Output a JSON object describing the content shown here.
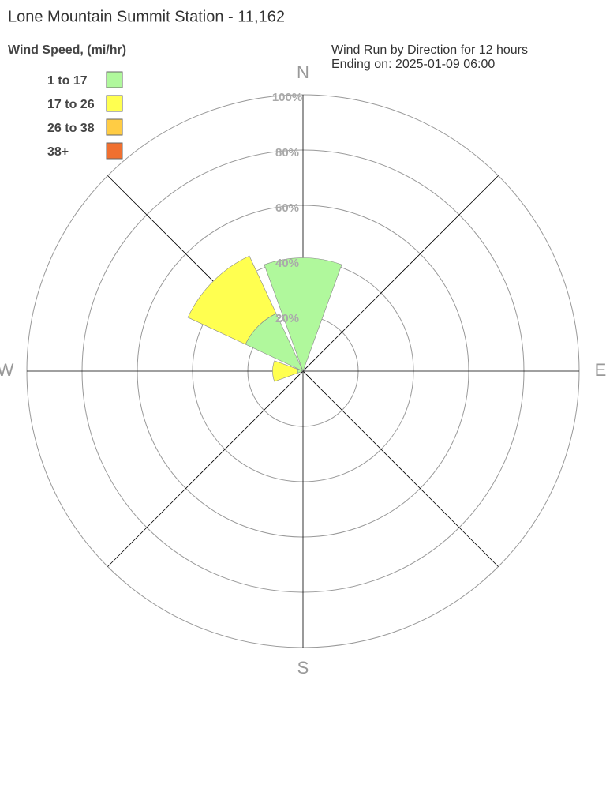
{
  "chart_data": {
    "type": "windrose",
    "title": "Lone Mountain Summit Station - 11,162",
    "subtitle": [
      "Wind Run by Direction for 12 hours",
      "Ending on: 2025-01-09 06:00"
    ],
    "legend_title": "Wind Speed, (mi/hr)",
    "categories": [
      "N",
      null,
      "E",
      null,
      "S",
      null,
      "W",
      null
    ],
    "series": [
      {
        "name": "1 to 17",
        "color": "#b0f89c",
        "values": [
          41,
          0,
          0,
          0,
          0,
          0,
          2,
          23
        ]
      },
      {
        "name": "17 to 26",
        "color": "#ffff50",
        "values": [
          0,
          0,
          0,
          0,
          0,
          0,
          9,
          23
        ]
      },
      {
        "name": "26 to 38",
        "color": "#ffcc44",
        "values": [
          0,
          0,
          0,
          0,
          0,
          0,
          0,
          0
        ]
      },
      {
        "name": "38+",
        "color": "#f07030",
        "values": [
          0,
          0,
          0,
          0,
          0,
          0,
          0,
          0
        ]
      }
    ],
    "rlim": [
      0,
      100
    ],
    "rticks": [
      {
        "value": 20,
        "label": "20%"
      },
      {
        "value": 40,
        "label": "40%"
      },
      {
        "value": 60,
        "label": "60%"
      },
      {
        "value": 80,
        "label": "80%"
      },
      {
        "value": 100,
        "label": "100%"
      }
    ],
    "legend": "top-left"
  }
}
